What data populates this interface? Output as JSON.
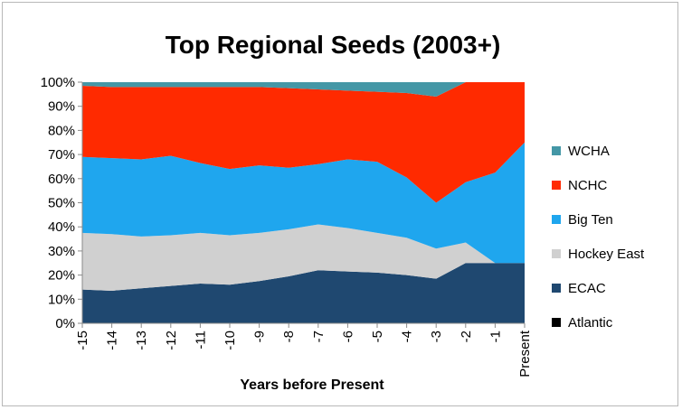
{
  "chart_data": {
    "type": "area",
    "stacked": "percent",
    "title": "Top Regional Seeds (2003+)",
    "xlabel": "Years before Present",
    "ylabel": "",
    "categories": [
      "-15",
      "-14",
      "-13",
      "-12",
      "-11",
      "-10",
      "-9",
      "-8",
      "-7",
      "-6",
      "-5",
      "-4",
      "-3",
      "-2",
      "-1",
      "Present"
    ],
    "ylim": [
      0,
      100
    ],
    "y_ticks": [
      "0%",
      "10%",
      "20%",
      "30%",
      "40%",
      "50%",
      "60%",
      "70%",
      "80%",
      "90%",
      "100%"
    ],
    "grid": false,
    "legend_position": "right",
    "series": [
      {
        "name": "Atlantic",
        "color": "#000000",
        "values": [
          0,
          0,
          0,
          0,
          0,
          0,
          0,
          0,
          0,
          0,
          0,
          0,
          0,
          0,
          0,
          0
        ]
      },
      {
        "name": "ECAC",
        "color": "#1f4870",
        "values": [
          14,
          13.5,
          14.5,
          15.5,
          16.5,
          16,
          17.5,
          19.5,
          22,
          21.5,
          21,
          20,
          18.5,
          25,
          25,
          25
        ]
      },
      {
        "name": "Hockey East",
        "color": "#d0d0d0",
        "values": [
          23.5,
          23.5,
          21.5,
          21,
          21,
          20.5,
          20,
          19.5,
          19,
          18,
          16.5,
          15.5,
          12.5,
          8.5,
          0,
          0
        ]
      },
      {
        "name": "Big Ten",
        "color": "#1fa6ee",
        "values": [
          31.5,
          31.5,
          32,
          33,
          29,
          27.5,
          28,
          25.5,
          25,
          28.5,
          29.5,
          25,
          19,
          25,
          37.5,
          50
        ]
      },
      {
        "name": "NCHC",
        "color": "#ff2a00",
        "values": [
          29.5,
          29.5,
          30,
          28.5,
          31.5,
          34,
          32.5,
          33,
          31,
          28.5,
          29,
          35,
          44,
          41.5,
          37.5,
          25
        ]
      },
      {
        "name": "WCHA",
        "color": "#4497a6",
        "values": [
          1.5,
          2,
          2,
          2,
          2,
          2,
          2,
          2.5,
          3,
          3.5,
          4,
          4.5,
          6,
          0,
          0,
          0
        ]
      }
    ]
  }
}
